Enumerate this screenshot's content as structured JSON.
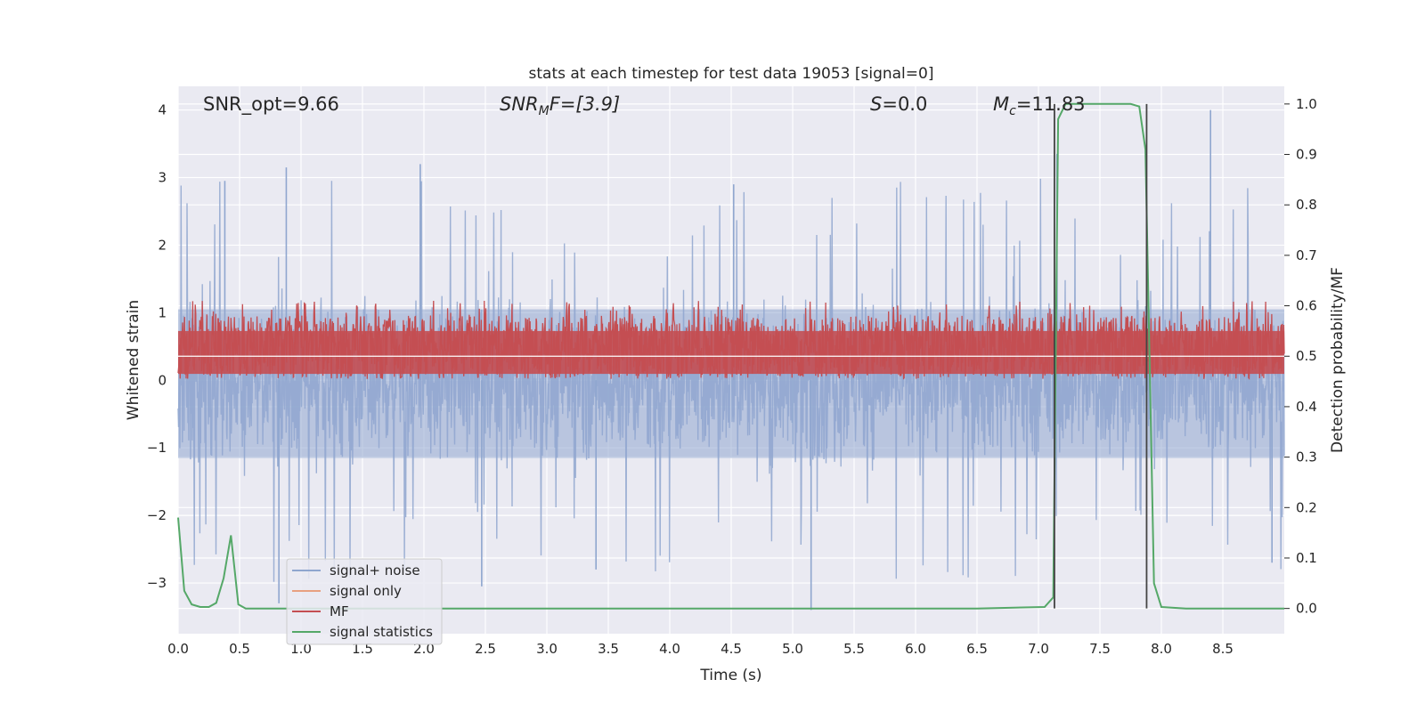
{
  "chart_data": {
    "type": "line",
    "title": "stats at each timestep for test data 19053 [signal=0]",
    "xlabel": "Time (s)",
    "ylabel_left": "Whitened strain",
    "ylabel_right": "Detection probability/MF",
    "xlim": [
      0,
      9.0
    ],
    "ylim_left": [
      -3.75,
      4.35
    ],
    "ylim_right": [
      -0.05,
      1.035
    ],
    "xticks": [
      "0.0",
      "0.5",
      "1.0",
      "1.5",
      "2.0",
      "2.5",
      "3.0",
      "3.5",
      "4.0",
      "4.5",
      "5.0",
      "5.5",
      "6.0",
      "6.5",
      "7.0",
      "7.5",
      "8.0",
      "8.5"
    ],
    "yticks_left": [
      "4",
      "3",
      "2",
      "1",
      "0",
      "−1",
      "−2",
      "−3"
    ],
    "yticks_right": [
      "1.0",
      "0.9",
      "0.8",
      "0.7",
      "0.6",
      "0.5",
      "0.4",
      "0.3",
      "0.2",
      "0.1",
      "0.0"
    ],
    "grid": true,
    "legend_position": "lower-left",
    "annotations": {
      "snr_opt": "SNR_opt=9.66",
      "snr_mf_sym": "SNR",
      "snr_mf_sub": "M",
      "snr_mf_rest": "F=[3.9]",
      "s_sym": "S",
      "s_rest": "=0.0",
      "mc_sym": "M",
      "mc_sub": "c",
      "mc_rest": "=11.83"
    },
    "series": [
      {
        "name": "signal+ noise",
        "color": "#8fa6cf",
        "axis": "left",
        "kind": "noise",
        "envelope_upper": 2.2,
        "envelope_lower": -2.2,
        "peak_max": 4.0,
        "peak_min": -3.4
      },
      {
        "name": "signal only",
        "color": "#e8a080",
        "axis": "left",
        "values": []
      },
      {
        "name": "MF",
        "color": "#c44e52",
        "axis": "right",
        "kind": "noise",
        "center": 0.5,
        "band_low": 0.455,
        "band_high": 0.58
      },
      {
        "name": "signal statistics",
        "color": "#55a868",
        "axis": "right",
        "x": [
          0.0,
          0.05,
          0.11,
          0.18,
          0.25,
          0.31,
          0.37,
          0.43,
          0.49,
          0.55,
          0.7,
          1.5,
          3.0,
          5.0,
          6.5,
          7.05,
          7.12,
          7.16,
          7.22,
          7.3,
          7.5,
          7.75,
          7.82,
          7.87,
          7.94,
          8.0,
          8.2,
          9.0
        ],
        "y": [
          0.18,
          0.035,
          0.008,
          0.003,
          0.003,
          0.011,
          0.06,
          0.145,
          0.008,
          0.0,
          0.0,
          0.0,
          0.0,
          0.0,
          0.0,
          0.003,
          0.022,
          0.97,
          1.0,
          1.0,
          1.0,
          1.0,
          0.995,
          0.91,
          0.05,
          0.003,
          0.0,
          0.0
        ]
      }
    ],
    "vertical_lines": [
      7.13,
      7.88
    ],
    "vertical_line_color": "#444444"
  }
}
